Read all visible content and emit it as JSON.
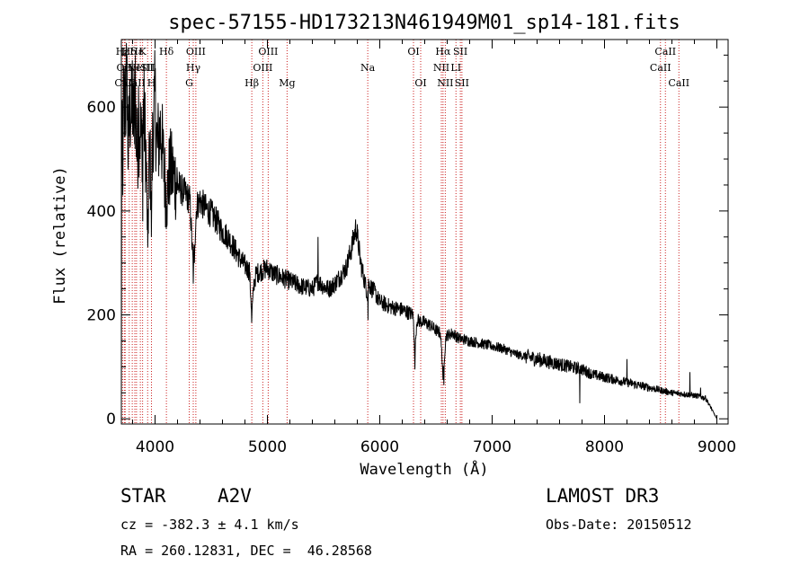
{
  "chart_data": {
    "type": "line",
    "title": "spec-57155-HD173213N461949M01_sp14-181.fits",
    "xlabel": "Wavelength (Å)",
    "ylabel": "Flux (relative)",
    "xlim": [
      3700,
      9100
    ],
    "ylim": [
      -10,
      730
    ],
    "xticks": [
      4000,
      5000,
      6000,
      7000,
      8000,
      9000
    ],
    "yticks": [
      0,
      200,
      400,
      600
    ],
    "x_minor_step": 200,
    "y_minor_step": 50,
    "line_color": "#000000",
    "marker_color": "#cc2222",
    "spectrum_anchors": [
      [
        3700,
        470
      ],
      [
        3710,
        540
      ],
      [
        3720,
        620
      ],
      [
        3730,
        560
      ],
      [
        3745,
        640
      ],
      [
        3760,
        520
      ],
      [
        3780,
        600
      ],
      [
        3800,
        560
      ],
      [
        3820,
        620
      ],
      [
        3840,
        510
      ],
      [
        3860,
        570
      ],
      [
        3880,
        530
      ],
      [
        3900,
        600
      ],
      [
        3920,
        500
      ],
      [
        3935,
        340
      ],
      [
        3950,
        520
      ],
      [
        3968,
        430
      ],
      [
        3980,
        560
      ],
      [
        4000,
        610
      ],
      [
        4020,
        520
      ],
      [
        4050,
        560
      ],
      [
        4080,
        480
      ],
      [
        4102,
        420
      ],
      [
        4130,
        480
      ],
      [
        4160,
        470
      ],
      [
        4200,
        450
      ],
      [
        4240,
        440
      ],
      [
        4280,
        430
      ],
      [
        4310,
        420
      ],
      [
        4340,
        290
      ],
      [
        4370,
        410
      ],
      [
        4400,
        420
      ],
      [
        4450,
        405
      ],
      [
        4500,
        395
      ],
      [
        4550,
        380
      ],
      [
        4600,
        360
      ],
      [
        4650,
        350
      ],
      [
        4700,
        330
      ],
      [
        4750,
        310
      ],
      [
        4800,
        295
      ],
      [
        4840,
        285
      ],
      [
        4861,
        200
      ],
      [
        4880,
        260
      ],
      [
        4900,
        280
      ],
      [
        4950,
        285
      ],
      [
        5000,
        290
      ],
      [
        5050,
        280
      ],
      [
        5100,
        275
      ],
      [
        5200,
        265
      ],
      [
        5300,
        255
      ],
      [
        5400,
        250
      ],
      [
        5450,
        265
      ],
      [
        5500,
        255
      ],
      [
        5550,
        250
      ],
      [
        5600,
        260
      ],
      [
        5650,
        275
      ],
      [
        5700,
        290
      ],
      [
        5750,
        330
      ],
      [
        5790,
        370
      ],
      [
        5830,
        300
      ],
      [
        5890,
        240
      ],
      [
        5900,
        260
      ],
      [
        5950,
        245
      ],
      [
        6000,
        225
      ],
      [
        6100,
        215
      ],
      [
        6200,
        210
      ],
      [
        6300,
        200
      ],
      [
        6310,
        120
      ],
      [
        6330,
        190
      ],
      [
        6400,
        185
      ],
      [
        6450,
        180
      ],
      [
        6500,
        170
      ],
      [
        6540,
        165
      ],
      [
        6563,
        85
      ],
      [
        6590,
        160
      ],
      [
        6650,
        165
      ],
      [
        6700,
        155
      ],
      [
        6800,
        150
      ],
      [
        6900,
        145
      ],
      [
        7000,
        140
      ],
      [
        7100,
        135
      ],
      [
        7200,
        125
      ],
      [
        7300,
        120
      ],
      [
        7400,
        115
      ],
      [
        7500,
        110
      ],
      [
        7600,
        105
      ],
      [
        7700,
        100
      ],
      [
        7800,
        95
      ],
      [
        7900,
        85
      ],
      [
        8000,
        80
      ],
      [
        8100,
        75
      ],
      [
        8200,
        70
      ],
      [
        8300,
        65
      ],
      [
        8400,
        60
      ],
      [
        8500,
        55
      ],
      [
        8600,
        50
      ],
      [
        8700,
        48
      ],
      [
        8800,
        45
      ],
      [
        8900,
        40
      ],
      [
        8950,
        20
      ],
      [
        9000,
        0
      ]
    ],
    "noise_scale": 0.08,
    "spikes": [
      [
        3700,
        -10
      ],
      [
        3712,
        430
      ],
      [
        3733,
        680
      ],
      [
        3751,
        700
      ],
      [
        3772,
        650
      ],
      [
        3798,
        690
      ],
      [
        3826,
        700
      ],
      [
        3852,
        640
      ],
      [
        3889,
        380
      ],
      [
        3935,
        330
      ],
      [
        3968,
        350
      ],
      [
        4102,
        410
      ],
      [
        4340,
        260
      ],
      [
        4350,
        300
      ],
      [
        4861,
        185
      ],
      [
        5450,
        350
      ],
      [
        5895,
        190
      ],
      [
        6312,
        95
      ],
      [
        6563,
        75
      ],
      [
        6570,
        65
      ],
      [
        7780,
        30
      ],
      [
        8200,
        115
      ],
      [
        8760,
        90
      ],
      [
        8855,
        60
      ]
    ],
    "line_markers": [
      {
        "x": 3711,
        "label": "Hε",
        "row": 0
      },
      {
        "x": 3727,
        "label": "OII",
        "row": 1
      },
      {
        "x": 3734,
        "label": "CaII",
        "row": 2
      },
      {
        "x": 3770,
        "label": "Hδ",
        "row": 0
      },
      {
        "x": 3797,
        "label": "FeI",
        "row": 1
      },
      {
        "x": 3820,
        "label": "CaII",
        "row": 2
      },
      {
        "x": 3835,
        "label": "Hε",
        "row": 0
      },
      {
        "x": 3869,
        "label": "NeIII",
        "row": 1
      },
      {
        "x": 3889,
        "label": "K",
        "row": 0
      },
      {
        "x": 3934,
        "label": "SII",
        "row": 1
      },
      {
        "x": 3968,
        "label": "H",
        "row": 2
      },
      {
        "x": 4101,
        "label": "Hδ",
        "row": 0
      },
      {
        "x": 4304,
        "label": "G",
        "row": 2
      },
      {
        "x": 4340,
        "label": "Hγ",
        "row": 1
      },
      {
        "x": 4363,
        "label": "OIII",
        "row": 0
      },
      {
        "x": 4861,
        "label": "Hβ",
        "row": 2
      },
      {
        "x": 4959,
        "label": "OIII",
        "row": 1
      },
      {
        "x": 5007,
        "label": "OIII",
        "row": 0
      },
      {
        "x": 5175,
        "label": "Mg",
        "row": 2
      },
      {
        "x": 5893,
        "label": "Na",
        "row": 1
      },
      {
        "x": 6300,
        "label": "OI",
        "row": 0
      },
      {
        "x": 6364,
        "label": "OI",
        "row": 2
      },
      {
        "x": 6548,
        "label": "NII",
        "row": 1
      },
      {
        "x": 6563,
        "label": "Hα",
        "row": 0
      },
      {
        "x": 6583,
        "label": "NII",
        "row": 2
      },
      {
        "x": 6678,
        "label": "LI",
        "row": 1
      },
      {
        "x": 6717,
        "label": "SII",
        "row": 0
      },
      {
        "x": 6731,
        "label": "SII",
        "row": 2
      },
      {
        "x": 8498,
        "label": "CaII",
        "row": 1
      },
      {
        "x": 8542,
        "label": "CaII",
        "row": 0
      },
      {
        "x": 8662,
        "label": "CaII",
        "row": 2
      }
    ]
  },
  "info": {
    "object_class": "STAR",
    "subclass": "A2V",
    "survey": "LAMOST DR3",
    "cz": "cz = -382.3 ± 4.1 km/s",
    "obs_date": "Obs-Date: 20150512",
    "coords": "RA = 260.12831, DEC =  46.28568"
  }
}
